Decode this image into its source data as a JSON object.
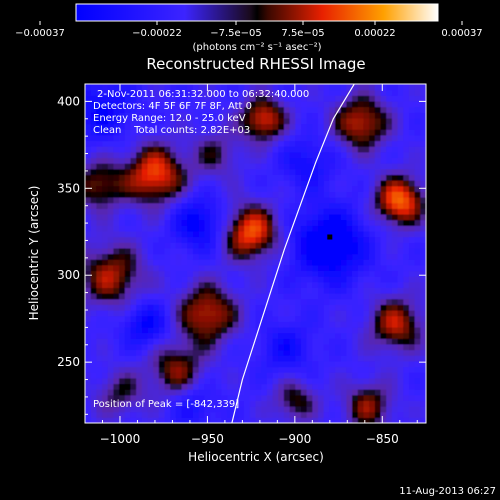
{
  "chart_data": {
    "type": "heatmap",
    "title": "Reconstructed RHESSI Image",
    "xlabel": "Heliocentric X (arcsec)",
    "ylabel": "Heliocentric Y (arcsec)",
    "xlim": [
      -1020,
      -825
    ],
    "ylim": [
      215,
      410
    ],
    "x_ticks": [
      -1000,
      -950,
      -900,
      -850
    ],
    "x_tick_labels": [
      "−1000",
      "−950",
      "−900",
      "−850"
    ],
    "y_ticks": [
      250,
      300,
      350,
      400
    ],
    "y_tick_labels": [
      "250",
      "300",
      "350",
      "400"
    ],
    "colorbar": {
      "units": "(photons cm⁻² s⁻¹ asec⁻²)",
      "range": [
        -0.00037,
        0.00037
      ],
      "tick_labels": [
        "−0.00037",
        "−0.00022",
        "−7.5e−05",
        "7.5e−05",
        "0.00022",
        "0.00037"
      ]
    },
    "annotations": [
      "2-Nov-2011 06:31:32.000 to 06:32:40.000",
      "Detectors: 4F 5F 6F 7F 8F, Att 0",
      "Energy Range: 12.0 - 25.0 keV",
      "Clean    Total counts: 2.82E+03"
    ],
    "peak_label": "Position of Peak = [-842,339]",
    "peak": [
      -842,
      339
    ],
    "marker": [
      -880,
      322
    ],
    "limb_curve": [
      [
        -936,
        215
      ],
      [
        -930,
        240
      ],
      [
        -922,
        265
      ],
      [
        -914,
        290
      ],
      [
        -906,
        315
      ],
      [
        -897,
        340
      ],
      [
        -888,
        365
      ],
      [
        -878,
        390
      ],
      [
        -866,
        410
      ]
    ],
    "emission_blobs": [
      {
        "x": -980,
        "y": 358,
        "amp": 0.00033,
        "s": 12
      },
      {
        "x": -1012,
        "y": 352,
        "amp": 0.00022,
        "s": 10
      },
      {
        "x": -1005,
        "y": 300,
        "amp": 0.00025,
        "s": 13
      },
      {
        "x": -925,
        "y": 325,
        "amp": 0.00034,
        "s": 11
      },
      {
        "x": -918,
        "y": 390,
        "amp": 0.0003,
        "s": 9
      },
      {
        "x": -950,
        "y": 278,
        "amp": 0.00028,
        "s": 12
      },
      {
        "x": -968,
        "y": 246,
        "amp": 0.00022,
        "s": 11
      },
      {
        "x": -1000,
        "y": 232,
        "amp": 0.00015,
        "s": 10
      },
      {
        "x": -840,
        "y": 343,
        "amp": 0.00036,
        "s": 10
      },
      {
        "x": -862,
        "y": 388,
        "amp": 0.00028,
        "s": 11
      },
      {
        "x": -842,
        "y": 272,
        "amp": 0.00026,
        "s": 11
      },
      {
        "x": -858,
        "y": 225,
        "amp": 0.00022,
        "s": 10
      },
      {
        "x": -900,
        "y": 228,
        "amp": 0.00018,
        "s": 9
      },
      {
        "x": -945,
        "y": 370,
        "amp": 0.00014,
        "s": 10
      },
      {
        "x": -880,
        "y": 318,
        "amp": -0.0003,
        "s": 14
      },
      {
        "x": -955,
        "y": 330,
        "amp": -0.00022,
        "s": 10
      },
      {
        "x": -1010,
        "y": 395,
        "amp": -0.00018,
        "s": 12
      },
      {
        "x": -985,
        "y": 272,
        "amp": -0.0002,
        "s": 9
      },
      {
        "x": -905,
        "y": 258,
        "amp": -0.00015,
        "s": 10
      },
      {
        "x": -958,
        "y": 225,
        "amp": -0.00012,
        "s": 9
      },
      {
        "x": -893,
        "y": 365,
        "amp": -0.00014,
        "s": 10
      }
    ]
  },
  "footer": {
    "timestamp": "11-Aug-2013 06:27"
  }
}
